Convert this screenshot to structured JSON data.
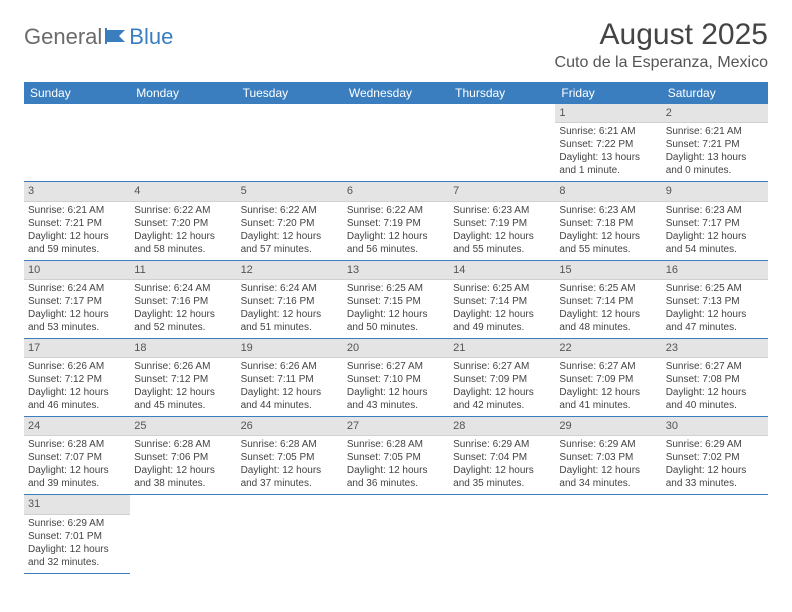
{
  "logo": {
    "part1": "General",
    "part2": "Blue"
  },
  "title": "August 2025",
  "location": "Cuto de la Esperanza, Mexico",
  "colors": {
    "header_bg": "#3a7ebf",
    "header_text": "#ffffff",
    "daynum_bg": "#e4e4e4",
    "week_border": "#3a7ebf",
    "body_text": "#444444",
    "page_bg": "#ffffff"
  },
  "typography": {
    "title_fontsize": 30,
    "location_fontsize": 16,
    "dayhead_fontsize": 12,
    "cell_fontsize": 10,
    "daynum_fontsize": 11
  },
  "day_names": [
    "Sunday",
    "Monday",
    "Tuesday",
    "Wednesday",
    "Thursday",
    "Friday",
    "Saturday"
  ],
  "weeks": [
    [
      null,
      null,
      null,
      null,
      null,
      {
        "n": "1",
        "sr": "6:21 AM",
        "ss": "7:22 PM",
        "dl1": "13 hours",
        "dl2": "and 1 minute."
      },
      {
        "n": "2",
        "sr": "6:21 AM",
        "ss": "7:21 PM",
        "dl1": "13 hours",
        "dl2": "and 0 minutes."
      }
    ],
    [
      {
        "n": "3",
        "sr": "6:21 AM",
        "ss": "7:21 PM",
        "dl1": "12 hours",
        "dl2": "and 59 minutes."
      },
      {
        "n": "4",
        "sr": "6:22 AM",
        "ss": "7:20 PM",
        "dl1": "12 hours",
        "dl2": "and 58 minutes."
      },
      {
        "n": "5",
        "sr": "6:22 AM",
        "ss": "7:20 PM",
        "dl1": "12 hours",
        "dl2": "and 57 minutes."
      },
      {
        "n": "6",
        "sr": "6:22 AM",
        "ss": "7:19 PM",
        "dl1": "12 hours",
        "dl2": "and 56 minutes."
      },
      {
        "n": "7",
        "sr": "6:23 AM",
        "ss": "7:19 PM",
        "dl1": "12 hours",
        "dl2": "and 55 minutes."
      },
      {
        "n": "8",
        "sr": "6:23 AM",
        "ss": "7:18 PM",
        "dl1": "12 hours",
        "dl2": "and 55 minutes."
      },
      {
        "n": "9",
        "sr": "6:23 AM",
        "ss": "7:17 PM",
        "dl1": "12 hours",
        "dl2": "and 54 minutes."
      }
    ],
    [
      {
        "n": "10",
        "sr": "6:24 AM",
        "ss": "7:17 PM",
        "dl1": "12 hours",
        "dl2": "and 53 minutes."
      },
      {
        "n": "11",
        "sr": "6:24 AM",
        "ss": "7:16 PM",
        "dl1": "12 hours",
        "dl2": "and 52 minutes."
      },
      {
        "n": "12",
        "sr": "6:24 AM",
        "ss": "7:16 PM",
        "dl1": "12 hours",
        "dl2": "and 51 minutes."
      },
      {
        "n": "13",
        "sr": "6:25 AM",
        "ss": "7:15 PM",
        "dl1": "12 hours",
        "dl2": "and 50 minutes."
      },
      {
        "n": "14",
        "sr": "6:25 AM",
        "ss": "7:14 PM",
        "dl1": "12 hours",
        "dl2": "and 49 minutes."
      },
      {
        "n": "15",
        "sr": "6:25 AM",
        "ss": "7:14 PM",
        "dl1": "12 hours",
        "dl2": "and 48 minutes."
      },
      {
        "n": "16",
        "sr": "6:25 AM",
        "ss": "7:13 PM",
        "dl1": "12 hours",
        "dl2": "and 47 minutes."
      }
    ],
    [
      {
        "n": "17",
        "sr": "6:26 AM",
        "ss": "7:12 PM",
        "dl1": "12 hours",
        "dl2": "and 46 minutes."
      },
      {
        "n": "18",
        "sr": "6:26 AM",
        "ss": "7:12 PM",
        "dl1": "12 hours",
        "dl2": "and 45 minutes."
      },
      {
        "n": "19",
        "sr": "6:26 AM",
        "ss": "7:11 PM",
        "dl1": "12 hours",
        "dl2": "and 44 minutes."
      },
      {
        "n": "20",
        "sr": "6:27 AM",
        "ss": "7:10 PM",
        "dl1": "12 hours",
        "dl2": "and 43 minutes."
      },
      {
        "n": "21",
        "sr": "6:27 AM",
        "ss": "7:09 PM",
        "dl1": "12 hours",
        "dl2": "and 42 minutes."
      },
      {
        "n": "22",
        "sr": "6:27 AM",
        "ss": "7:09 PM",
        "dl1": "12 hours",
        "dl2": "and 41 minutes."
      },
      {
        "n": "23",
        "sr": "6:27 AM",
        "ss": "7:08 PM",
        "dl1": "12 hours",
        "dl2": "and 40 minutes."
      }
    ],
    [
      {
        "n": "24",
        "sr": "6:28 AM",
        "ss": "7:07 PM",
        "dl1": "12 hours",
        "dl2": "and 39 minutes."
      },
      {
        "n": "25",
        "sr": "6:28 AM",
        "ss": "7:06 PM",
        "dl1": "12 hours",
        "dl2": "and 38 minutes."
      },
      {
        "n": "26",
        "sr": "6:28 AM",
        "ss": "7:05 PM",
        "dl1": "12 hours",
        "dl2": "and 37 minutes."
      },
      {
        "n": "27",
        "sr": "6:28 AM",
        "ss": "7:05 PM",
        "dl1": "12 hours",
        "dl2": "and 36 minutes."
      },
      {
        "n": "28",
        "sr": "6:29 AM",
        "ss": "7:04 PM",
        "dl1": "12 hours",
        "dl2": "and 35 minutes."
      },
      {
        "n": "29",
        "sr": "6:29 AM",
        "ss": "7:03 PM",
        "dl1": "12 hours",
        "dl2": "and 34 minutes."
      },
      {
        "n": "30",
        "sr": "6:29 AM",
        "ss": "7:02 PM",
        "dl1": "12 hours",
        "dl2": "and 33 minutes."
      }
    ],
    [
      {
        "n": "31",
        "sr": "6:29 AM",
        "ss": "7:01 PM",
        "dl1": "12 hours",
        "dl2": "and 32 minutes."
      },
      null,
      null,
      null,
      null,
      null,
      null
    ]
  ],
  "labels": {
    "sunrise": "Sunrise:",
    "sunset": "Sunset:",
    "daylight": "Daylight:"
  }
}
